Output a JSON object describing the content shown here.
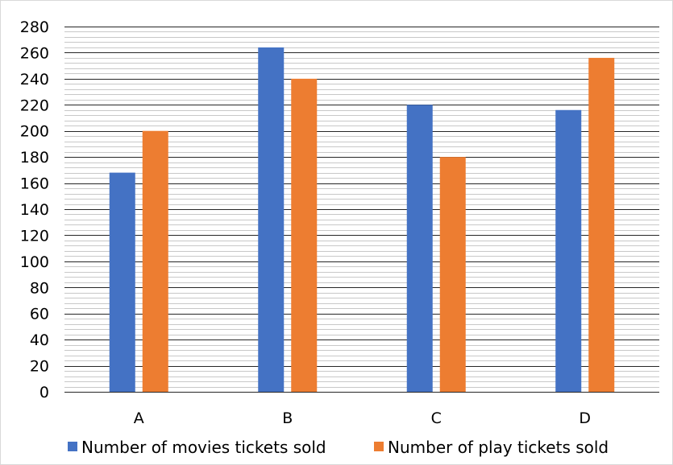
{
  "chart_data": {
    "type": "bar",
    "title": "",
    "xlabel": "",
    "ylabel": "",
    "categories": [
      "A",
      "B",
      "C",
      "D"
    ],
    "series": [
      {
        "name": "Number of movies tickets sold",
        "color": "#4472C4",
        "values": [
          168,
          264,
          220,
          216
        ]
      },
      {
        "name": "Number of play tickets sold",
        "color": "#ED7D31",
        "values": [
          200,
          240,
          180,
          256
        ]
      }
    ],
    "ylim": [
      0,
      280
    ],
    "major_ticks": [
      "0",
      "20",
      "40",
      "60",
      "80",
      "100",
      "120",
      "140",
      "160",
      "180",
      "200",
      "220",
      "240",
      "260",
      "280"
    ],
    "major_step": 20,
    "minor_step": 4,
    "grid": true,
    "legend_position": "bottom"
  }
}
